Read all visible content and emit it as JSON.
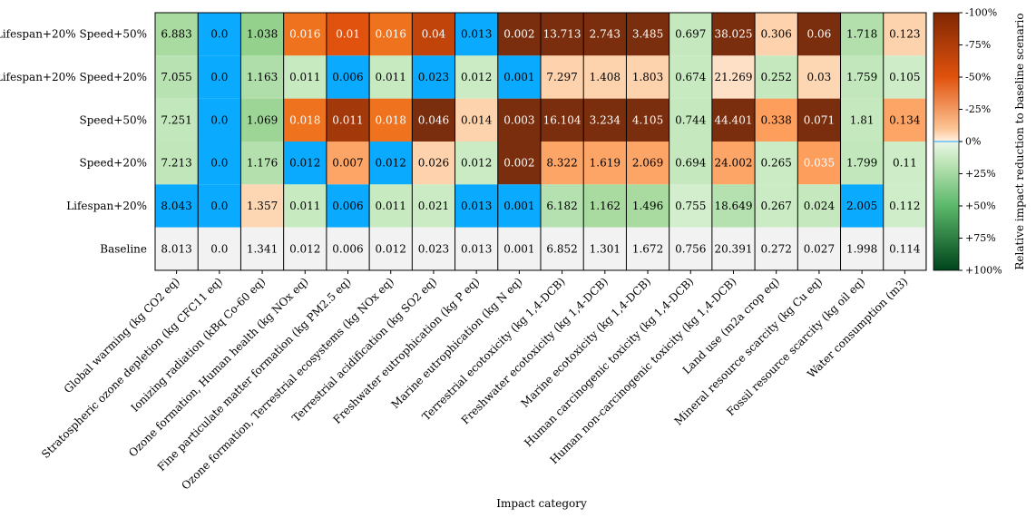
{
  "chart_data": {
    "type": "heatmap",
    "title": "",
    "xlabel": "Impact category",
    "ylabel": "",
    "colorbar_label": "Relative impact reduction to baseline scenario",
    "colorbar_ticks": [
      "-100%",
      "-75%",
      "-50%",
      "-25%",
      "0%",
      "+25%",
      "+50%",
      "+75%",
      "+100%"
    ],
    "colorbar_range": [
      -1,
      1
    ],
    "columns": [
      "Global warming (kg CO2 eq)",
      "Stratospheric ozone depletion (kg CFC11 eq)",
      "Ionizing radiation (kBq Co-60 eq)",
      "Ozone formation, Human health (kg NOx eq)",
      "Fine particulate matter formation (kg PM2.5 eq)",
      "Ozone formation, Terrestrial ecosystems (kg NOx eq)",
      "Terrestrial acidification (kg SO2 eq)",
      "Freshwater eutrophication (kg P eq)",
      "Marine eutrophication (kg N eq)",
      "Terrestrial ecotoxicity (kg 1,4-DCB)",
      "Freshwater ecotoxicity (kg 1,4-DCB)",
      "Marine ecotoxicity (kg 1,4-DCB)",
      "Human carcinogenic toxicity (kg 1,4-DCB)",
      "Human non-carcinogenic toxicity (kg 1,4-DCB)",
      "Land use (m2a crop eq)",
      "Mineral resource scarcity (kg Cu eq)",
      "Fossil resource scarcity (kg oil eq)",
      "Water consumption (m3)"
    ],
    "rows": [
      {
        "name": "Lifespan+20% Speed+50%",
        "values": [
          "6.883",
          "0.0",
          "1.038",
          "0.016",
          "0.01",
          "0.016",
          "0.04",
          "0.013",
          "0.002",
          "13.713",
          "2.743",
          "3.485",
          "0.697",
          "38.025",
          "0.306",
          "0.06",
          "1.718",
          "0.123"
        ]
      },
      {
        "name": "Lifespan+20% Speed+20%",
        "values": [
          "7.055",
          "0.0",
          "1.163",
          "0.011",
          "0.006",
          "0.011",
          "0.023",
          "0.012",
          "0.001",
          "7.297",
          "1.408",
          "1.803",
          "0.674",
          "21.269",
          "0.252",
          "0.03",
          "1.759",
          "0.105"
        ]
      },
      {
        "name": "Speed+50%",
        "values": [
          "7.251",
          "0.0",
          "1.069",
          "0.018",
          "0.011",
          "0.018",
          "0.046",
          "0.014",
          "0.003",
          "16.104",
          "3.234",
          "4.105",
          "0.744",
          "44.401",
          "0.338",
          "0.071",
          "1.81",
          "0.134"
        ]
      },
      {
        "name": "Speed+20%",
        "values": [
          "7.213",
          "0.0",
          "1.176",
          "0.012",
          "0.007",
          "0.012",
          "0.026",
          "0.012",
          "0.002",
          "8.322",
          "1.619",
          "2.069",
          "0.694",
          "24.002",
          "0.265",
          "0.035",
          "1.799",
          "0.11"
        ]
      },
      {
        "name": "Lifespan+20%",
        "values": [
          "8.043",
          "0.0",
          "1.357",
          "0.011",
          "0.006",
          "0.011",
          "0.021",
          "0.013",
          "0.001",
          "6.182",
          "1.162",
          "1.496",
          "0.755",
          "18.649",
          "0.267",
          "0.024",
          "2.005",
          "0.112"
        ]
      },
      {
        "name": "Baseline",
        "values": [
          "8.013",
          "0.0",
          "1.341",
          "0.012",
          "0.006",
          "0.012",
          "0.023",
          "0.013",
          "0.001",
          "6.852",
          "1.301",
          "1.672",
          "0.756",
          "20.391",
          "0.272",
          "0.027",
          "1.998",
          "0.114"
        ]
      }
    ],
    "cell_colors": [
      [
        "#a9dba1",
        "#0aaaff",
        "#93d18c",
        "#ef731e",
        "#e0520d",
        "#ef731e",
        "#c1440a",
        "#0aaaff",
        "#7a2e0d",
        "#7a2e0d",
        "#7a2e0d",
        "#7a2e0d",
        "#c6e8bf",
        "#7a2e0d",
        "#fdd2ac",
        "#7a2e0d",
        "#b2dfab",
        "#fdd3ae"
      ],
      [
        "#b8e2b2",
        "#0aaaff",
        "#b0deaa",
        "#c8eac1",
        "#0aaaff",
        "#c8eac1",
        "#0aaaff",
        "#cbebc4",
        "#0aaaff",
        "#fdd2ac",
        "#fdd3ae",
        "#fdd3ae",
        "#c8eac1",
        "#fee0c6",
        "#c5e8be",
        "#fdd6b4",
        "#c2e7bc",
        "#cdecc7"
      ],
      [
        "#c2e7bc",
        "#0aaaff",
        "#9dd596",
        "#ef731e",
        "#a3390a",
        "#ef731e",
        "#7a2e0d",
        "#fdd3ae",
        "#7a2e0d",
        "#7a2e0d",
        "#7a2e0d",
        "#7a2e0d",
        "#c6e8bf",
        "#7a2e0d",
        "#fd9e5c",
        "#7a2e0d",
        "#c6e8bf",
        "#fda566"
      ],
      [
        "#c0e6ba",
        "#0aaaff",
        "#b3e0ad",
        "#0aaaff",
        "#fda566",
        "#0aaaff",
        "#fdd2ac",
        "#cbebc4",
        "#7a2e0d",
        "#fda566",
        "#fda566",
        "#fda566",
        "#c6e8bf",
        "#fda566",
        "#cbebc4",
        "#fd9e5c",
        "#c2e7bc",
        "#cdecc7"
      ],
      [
        "#0aaaff",
        "#0aaaff",
        "#fdd6b4",
        "#c8eac1",
        "#0aaaff",
        "#c8eac1",
        "#cbebc4",
        "#0aaaff",
        "#0aaaff",
        "#b5e0af",
        "#a9dba1",
        "#a9dba1",
        "#d2eecc",
        "#b5e0af",
        "#cbebc4",
        "#c6e8bf",
        "#0aaaff",
        "#d0edca"
      ],
      [
        "#f2f2f2",
        "#f2f2f2",
        "#f2f2f2",
        "#f2f2f2",
        "#f2f2f2",
        "#f2f2f2",
        "#f2f2f2",
        "#f2f2f2",
        "#f2f2f2",
        "#f2f2f2",
        "#f2f2f2",
        "#f2f2f2",
        "#f2f2f2",
        "#f2f2f2",
        "#f2f2f2",
        "#f2f2f2",
        "#f2f2f2",
        "#f2f2f2"
      ]
    ],
    "cell_text_colors": [
      [
        "#000",
        "#000",
        "#000",
        "#fff",
        "#fff",
        "#fff",
        "#fff",
        "#000",
        "#fff",
        "#fff",
        "#fff",
        "#fff",
        "#000",
        "#fff",
        "#000",
        "#fff",
        "#000",
        "#000"
      ],
      [
        "#000",
        "#000",
        "#000",
        "#000",
        "#000",
        "#000",
        "#000",
        "#000",
        "#000",
        "#000",
        "#000",
        "#000",
        "#000",
        "#000",
        "#000",
        "#000",
        "#000",
        "#000"
      ],
      [
        "#000",
        "#000",
        "#000",
        "#fff",
        "#fff",
        "#fff",
        "#fff",
        "#000",
        "#fff",
        "#fff",
        "#fff",
        "#fff",
        "#000",
        "#fff",
        "#000",
        "#fff",
        "#000",
        "#000"
      ],
      [
        "#000",
        "#000",
        "#000",
        "#000",
        "#000",
        "#000",
        "#000",
        "#000",
        "#fff",
        "#000",
        "#000",
        "#000",
        "#000",
        "#000",
        "#000",
        "#fff",
        "#000",
        "#000"
      ],
      [
        "#000",
        "#000",
        "#000",
        "#000",
        "#000",
        "#000",
        "#000",
        "#000",
        "#000",
        "#000",
        "#000",
        "#000",
        "#000",
        "#000",
        "#000",
        "#000",
        "#000",
        "#000"
      ],
      [
        "#000",
        "#000",
        "#000",
        "#000",
        "#000",
        "#000",
        "#000",
        "#000",
        "#000",
        "#000",
        "#000",
        "#000",
        "#000",
        "#000",
        "#000",
        "#000",
        "#000",
        "#000"
      ]
    ],
    "colors": {
      "neg_full": "#7f2704",
      "neg_mid": "#f16913",
      "neg_light": "#fdd0a2",
      "zero_line": "#1aa3ff",
      "pos_light": "#c7e9c0",
      "pos_mid": "#74c476",
      "pos_full": "#00441b"
    }
  }
}
